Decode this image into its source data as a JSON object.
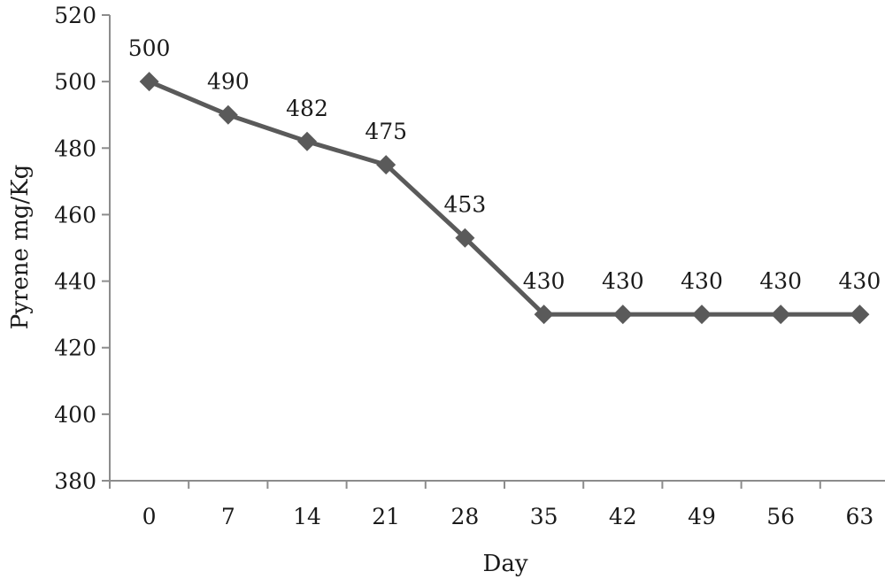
{
  "chart_data": {
    "type": "line",
    "title": "",
    "xlabel": "Day",
    "ylabel": "Pyrene mg/Kg",
    "categories": [
      "0",
      "7",
      "14",
      "21",
      "28",
      "35",
      "42",
      "49",
      "56",
      "63"
    ],
    "series": [
      {
        "values": [
          500,
          490,
          482,
          475,
          453,
          430,
          430,
          430,
          430,
          430
        ]
      }
    ],
    "data_labels": [
      "500",
      "490",
      "482",
      "475",
      "453",
      "430",
      "430",
      "430",
      "430",
      "430"
    ],
    "ylim": [
      380,
      520
    ],
    "yticks": [
      380,
      400,
      420,
      440,
      460,
      480,
      500,
      520
    ],
    "grid": false,
    "legend": "none",
    "marker": "diamond",
    "colors": {
      "series": "#5a5a5a",
      "axis": "#8c8c8c"
    }
  }
}
